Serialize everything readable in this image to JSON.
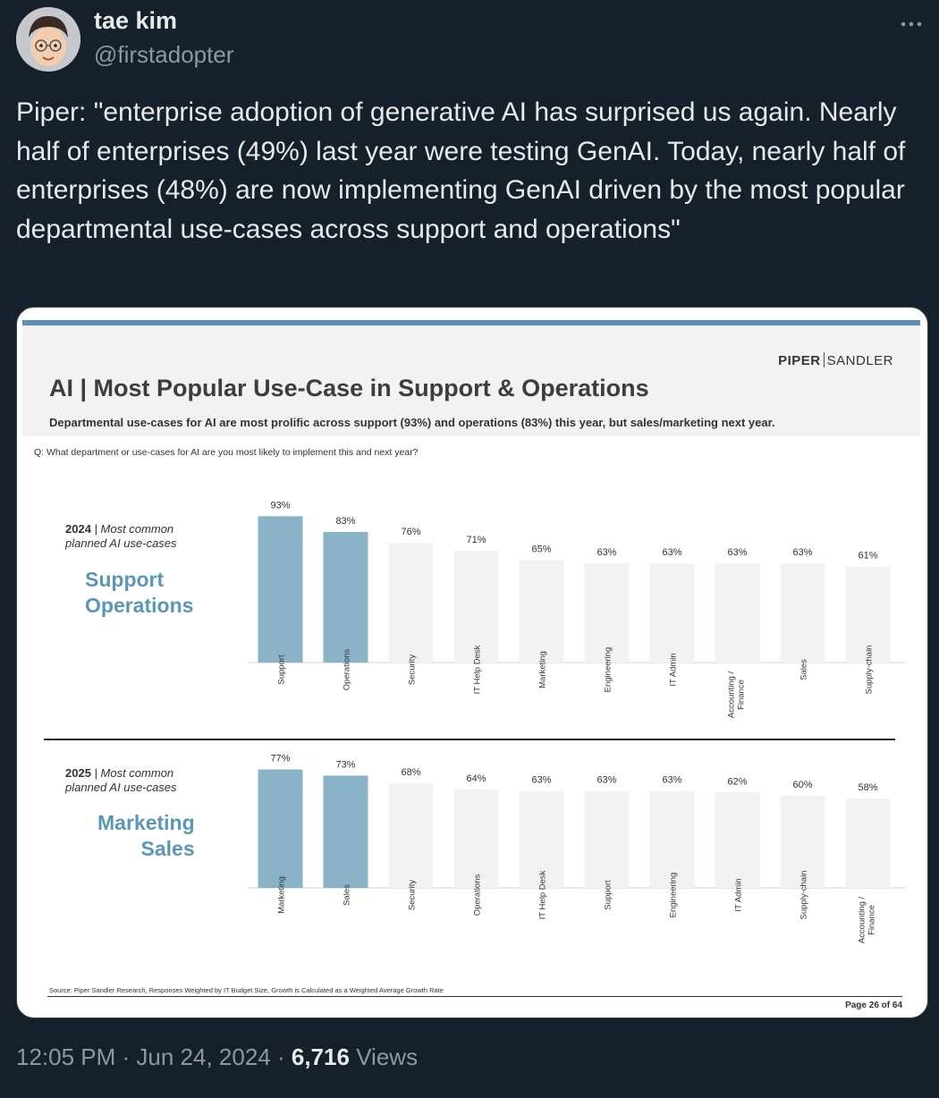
{
  "tweet": {
    "author_name": "tae kim",
    "author_handle": "@firstadopter",
    "more_icon": "more-horizontal-icon",
    "text": "Piper: \"enterprise adoption of generative AI has surprised us again. Nearly half of enterprises (49%) last year were testing GenAI. Today, nearly half of enterprises (48%) are now implementing GenAI driven by the most popular departmental use-cases across support and operations\"",
    "time": "12:05 PM",
    "sep": " · ",
    "date": "Jun 24, 2024",
    "views_count": "6,716",
    "views_label": "Views"
  },
  "slide": {
    "brand_left": "PIPER",
    "brand_right": "SANDLER",
    "title": "AI | Most Popular Use-Case in Support & Operations",
    "subtitle": "Departmental use-cases for AI are most prolific across support (93%) and operations (83%) this year, but sales/marketing next year.",
    "question": "Q: What department or use-cases for AI are you most likely to implement this and next year?",
    "source": "Source: Piper Sandler Research, Responses Weighted by IT Budget Size, Growth is Calculated as a Weighted Average Growth Rate",
    "page": "Page 26 of 64",
    "colors": {
      "highlight": "#8ab3c8",
      "other": "#f2f2f2",
      "accent_text": "#5c97b6",
      "bar_top": "#5d8fb0"
    }
  },
  "chart_data": [
    {
      "type": "bar",
      "year": "2024",
      "year_caption": " | Most common planned AI use-cases",
      "big_label": [
        "Support",
        "Operations"
      ],
      "categories": [
        "Support",
        "Operations",
        "Security",
        "IT Help Desk",
        "Marketing",
        "Engineering",
        "IT Admin",
        "Accounting / Finance",
        "Sales",
        "Supply-chain"
      ],
      "values": [
        93,
        83,
        76,
        71,
        65,
        63,
        63,
        63,
        63,
        61
      ],
      "labels": [
        "93%",
        "83%",
        "76%",
        "71%",
        "65%",
        "63%",
        "63%",
        "63%",
        "63%",
        "61%"
      ],
      "highlighted": [
        true,
        true,
        false,
        false,
        false,
        false,
        false,
        false,
        false,
        false
      ]
    },
    {
      "type": "bar",
      "year": "2025",
      "year_caption": " | Most common planned AI use-cases",
      "big_label": [
        "Marketing",
        "Sales"
      ],
      "categories": [
        "Marketing",
        "Sales",
        "Security",
        "Operations",
        "IT Help Desk",
        "Support",
        "Engineering",
        "IT Admin",
        "Supply-chain",
        "Accounting / Finance"
      ],
      "values": [
        77,
        73,
        68,
        64,
        63,
        63,
        63,
        62,
        60,
        58
      ],
      "labels": [
        "77%",
        "73%",
        "68%",
        "64%",
        "63%",
        "63%",
        "63%",
        "62%",
        "60%",
        "58%"
      ],
      "highlighted": [
        true,
        true,
        false,
        false,
        false,
        false,
        false,
        false,
        false,
        false
      ]
    }
  ]
}
